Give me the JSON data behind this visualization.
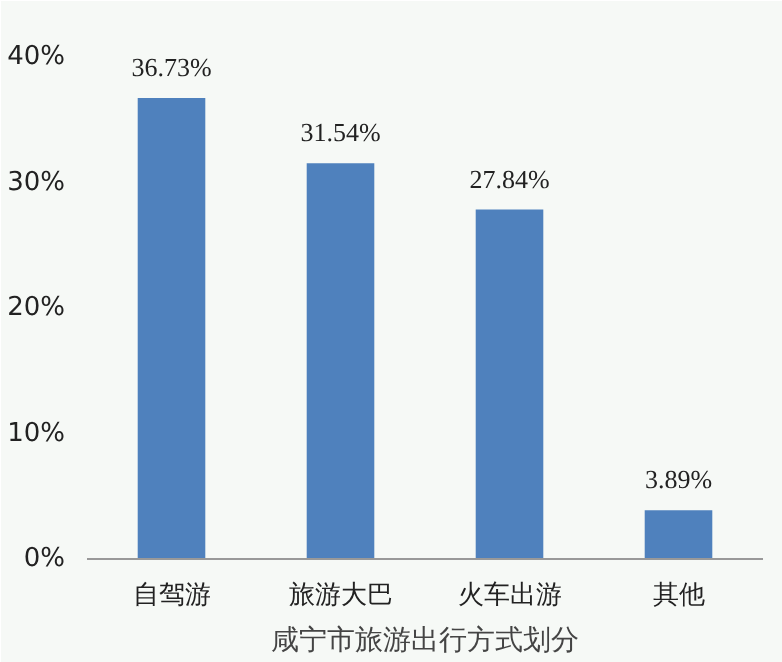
{
  "chart_data": {
    "type": "bar",
    "xlabel": "咸宁市旅游出行方式划分",
    "categories": [
      "自驾游",
      "旅游大巴",
      "火车出游",
      "其他"
    ],
    "values": [
      36.73,
      31.54,
      27.84,
      3.89
    ],
    "value_labels": [
      "36.73%",
      "31.54%",
      "27.84%",
      "3.89%"
    ],
    "color": "#4f81bd",
    "ylim": [
      0,
      40
    ],
    "yticks": [
      {
        "value": 0,
        "label": "0%"
      },
      {
        "value": 10,
        "label": "10%"
      },
      {
        "value": 20,
        "label": "20%"
      },
      {
        "value": 30,
        "label": "30%"
      },
      {
        "value": 40,
        "label": "40%"
      }
    ],
    "grid": false
  }
}
